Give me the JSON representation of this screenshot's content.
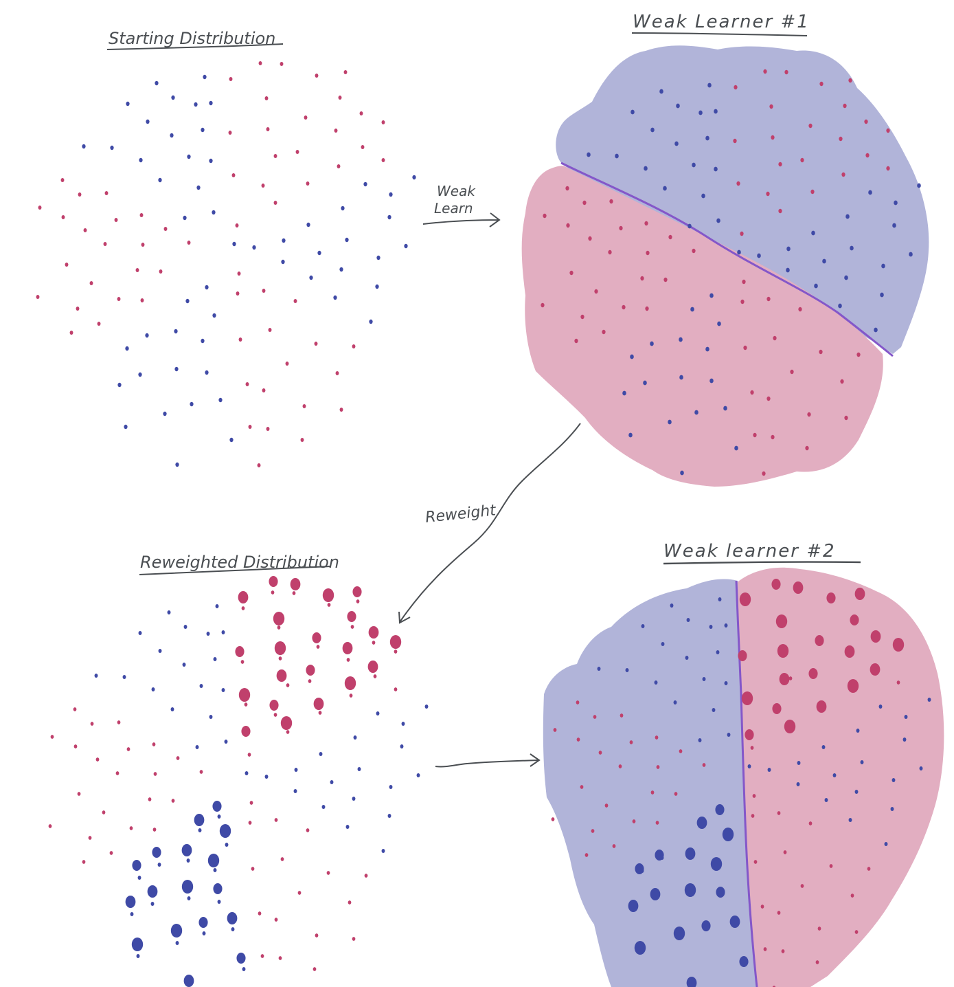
{
  "titles": {
    "starting": "Starting Distribution",
    "weak1": "Weak Learner #1",
    "reweighted": "Reweighted Distribution",
    "weak2": "Weak learner #2"
  },
  "arrows": {
    "weak_learn_line1": "Weak",
    "weak_learn_line2": "Learn",
    "reweight": "Reweight"
  },
  "colors": {
    "blue_point": "#3f4aa6",
    "red_point": "#c0406c",
    "blue_region": "#b1b4d9",
    "red_region": "#e2aec1",
    "boundary": "#8457c9",
    "ink": "#4a4e52"
  }
}
